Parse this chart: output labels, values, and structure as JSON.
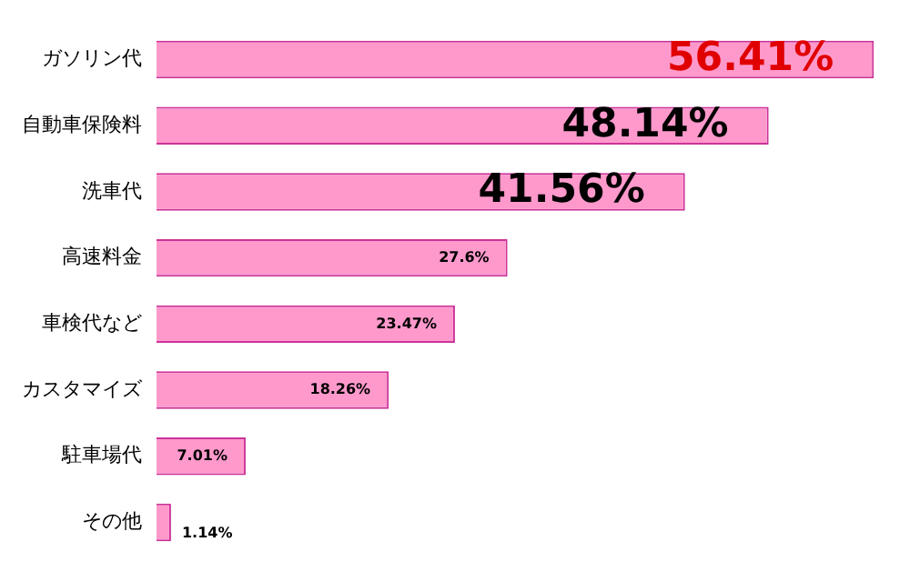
{
  "chart_data": {
    "type": "bar",
    "orientation": "horizontal",
    "categories": [
      "ガソリン代",
      "自動車保険料",
      "洗車代",
      "高速料金",
      "車検代など",
      "カスタマイズ",
      "駐車場代",
      "その他"
    ],
    "values": [
      56.41,
      48.14,
      41.56,
      27.6,
      23.47,
      18.26,
      7.01,
      1.14
    ],
    "value_labels": [
      "56.41%",
      "48.14%",
      "41.56%",
      "27.6%",
      "23.47%",
      "18.26%",
      "7.01%",
      "1.14%"
    ],
    "color": "#ff99cc",
    "grid": false,
    "legend": false
  }
}
